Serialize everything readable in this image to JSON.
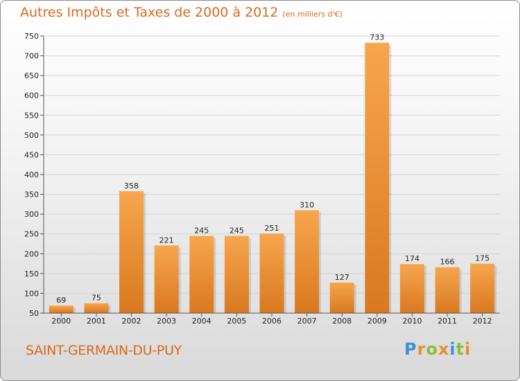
{
  "title": "Autres Impôts et Taxes de 2000 à 2012",
  "subtitle": "(en milliers d'€)",
  "place": "SAINT-GERMAIN-DU-PUY",
  "logo": "Proxiti",
  "colors": {
    "title": "#d96a1c",
    "bar_light": "#f7a64e",
    "bar_dark": "#d9781f"
  },
  "chart_data": {
    "type": "bar",
    "categories": [
      "2000",
      "2001",
      "2002",
      "2003",
      "2004",
      "2005",
      "2006",
      "2007",
      "2008",
      "2009",
      "2010",
      "2011",
      "2012"
    ],
    "values": [
      69,
      75,
      358,
      221,
      245,
      245,
      251,
      310,
      127,
      733,
      174,
      166,
      175
    ],
    "title": "Autres Impôts et Taxes de 2000 à 2012",
    "subtitle": "(en milliers d'€)",
    "xlabel": "",
    "ylabel": "",
    "ylim": [
      50,
      750
    ],
    "yticks": [
      50,
      100,
      150,
      200,
      250,
      300,
      350,
      400,
      450,
      500,
      550,
      600,
      650,
      700,
      750
    ],
    "grid": true,
    "data_labels": true
  }
}
